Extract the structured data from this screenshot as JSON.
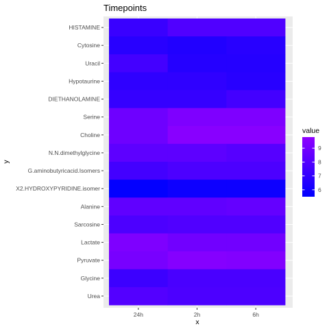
{
  "chart_data": {
    "type": "heatmap",
    "title": "Timepoints",
    "xlabel": "x",
    "ylabel": "y",
    "x": [
      "24h",
      "2h",
      "6h"
    ],
    "y": [
      "HISTAMINE",
      "Cytosine",
      "Uracil",
      "Hypotaurine",
      "DIETHANOLAMINE",
      "Serine",
      "Choline",
      "N.N.dimethylglycine",
      "G.aminobutyricacid.Isomers",
      "X2.HYDROXYPYRIDINE.isomer",
      "Alanine",
      "Sarcosine",
      "Lactate",
      "Pyruvate",
      "Glycine",
      "Urea"
    ],
    "values": [
      [
        7.2,
        7.9,
        7.9
      ],
      [
        6.7,
        6.5,
        6.7
      ],
      [
        7.5,
        6.6,
        6.6
      ],
      [
        6.9,
        6.9,
        6.7
      ],
      [
        7.1,
        7.1,
        7.5
      ],
      [
        8.8,
        9.3,
        9.3
      ],
      [
        8.8,
        9.6,
        9.6
      ],
      [
        8.3,
        8.3,
        8.1
      ],
      [
        7.5,
        7.8,
        7.8
      ],
      [
        5.6,
        5.9,
        5.9
      ],
      [
        8.4,
        8.4,
        8.5
      ],
      [
        7.8,
        7.9,
        7.9
      ],
      [
        9.3,
        8.9,
        8.9
      ],
      [
        9.1,
        9.5,
        9.4
      ],
      [
        7.3,
        7.7,
        7.7
      ],
      [
        8.0,
        7.8,
        7.8
      ]
    ],
    "color_scale": {
      "low": "#0000ff",
      "high": "#8f00ff",
      "range": [
        5.5,
        9.8
      ]
    },
    "legend": {
      "title": "value",
      "position": "right",
      "ticks": [
        6,
        7,
        8,
        9
      ]
    },
    "grid": true
  }
}
